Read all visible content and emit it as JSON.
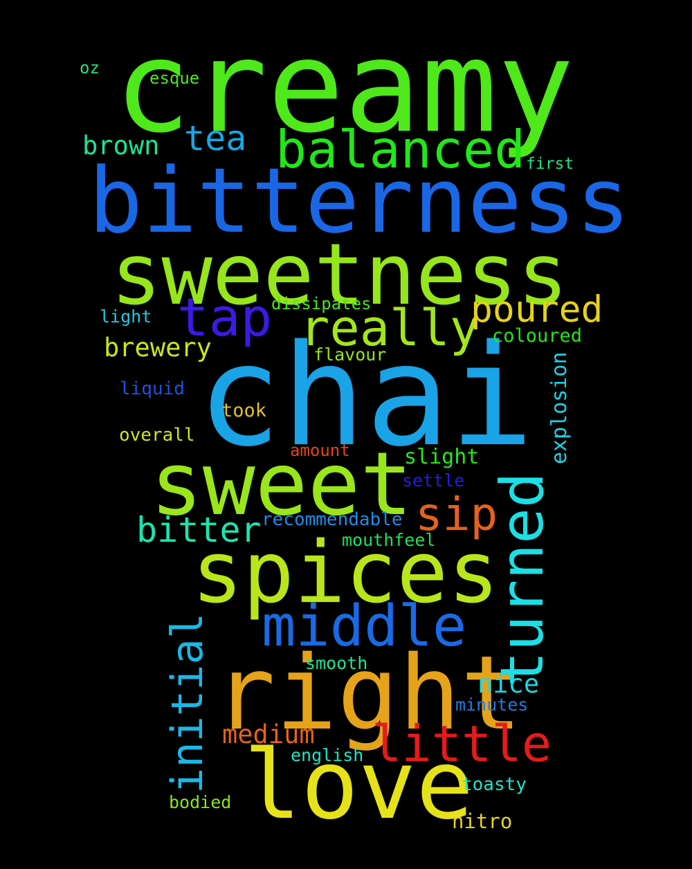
{
  "background": "#000000",
  "words": [
    {
      "text": "creamy",
      "color": "#4fe81a"
    },
    {
      "text": "bitterness",
      "color": "#1a67e6"
    },
    {
      "text": "sweetness",
      "color": "#97e51b"
    },
    {
      "text": "chai",
      "color": "#1aa3e6"
    },
    {
      "text": "sweet",
      "color": "#9be61a"
    },
    {
      "text": "spices",
      "color": "#b9e61a"
    },
    {
      "text": "right",
      "color": "#e6a31a"
    },
    {
      "text": "love",
      "color": "#e6e21a"
    },
    {
      "text": "balanced",
      "color": "#22e61a"
    },
    {
      "text": "turned",
      "color": "#1ae0e6"
    },
    {
      "text": "middle",
      "color": "#1a6ae6"
    },
    {
      "text": "really",
      "color": "#a3e61a"
    },
    {
      "text": "tap",
      "color": "#3b1ae6"
    },
    {
      "text": "little",
      "color": "#e61a1a"
    },
    {
      "text": "poured",
      "color": "#e6d21a"
    },
    {
      "text": "sip",
      "color": "#e6621a"
    },
    {
      "text": "initial",
      "color": "#1ab8e6"
    },
    {
      "text": "tea",
      "color": "#1aa6e6"
    },
    {
      "text": "bitter",
      "color": "#1ae6b0"
    },
    {
      "text": "brown",
      "color": "#1ae694"
    },
    {
      "text": "brewery",
      "color": "#c8e61a"
    },
    {
      "text": "medium",
      "color": "#e6621a"
    },
    {
      "text": "nice",
      "color": "#1ad8e6"
    },
    {
      "text": "explosion",
      "color": "#1ad3e6"
    },
    {
      "text": "slight",
      "color": "#28e61a"
    },
    {
      "text": "dissipates",
      "color": "#4ee61a"
    },
    {
      "text": "coloured",
      "color": "#26e61a"
    },
    {
      "text": "flavour",
      "color": "#94e61a"
    },
    {
      "text": "light",
      "color": "#1acde6"
    },
    {
      "text": "liquid",
      "color": "#1a52e6"
    },
    {
      "text": "took",
      "color": "#e6c21a"
    },
    {
      "text": "overall",
      "color": "#d0e61a"
    },
    {
      "text": "amount",
      "color": "#e6451a"
    },
    {
      "text": "settle",
      "color": "#2a1ae6"
    },
    {
      "text": "recommendable",
      "color": "#1a8ee6"
    },
    {
      "text": "mouthfeel",
      "color": "#1ae65a"
    },
    {
      "text": "smooth",
      "color": "#1ae69a"
    },
    {
      "text": "minutes",
      "color": "#1a7ee6"
    },
    {
      "text": "english",
      "color": "#1ae6c8"
    },
    {
      "text": "toasty",
      "color": "#1ae6cc"
    },
    {
      "text": "bodied",
      "color": "#8ae61a"
    },
    {
      "text": "nitro",
      "color": "#e6d21a"
    },
    {
      "text": "first",
      "color": "#1ae686"
    },
    {
      "text": "esque",
      "color": "#4ee61a"
    },
    {
      "text": "oz",
      "color": "#1ae674"
    }
  ]
}
